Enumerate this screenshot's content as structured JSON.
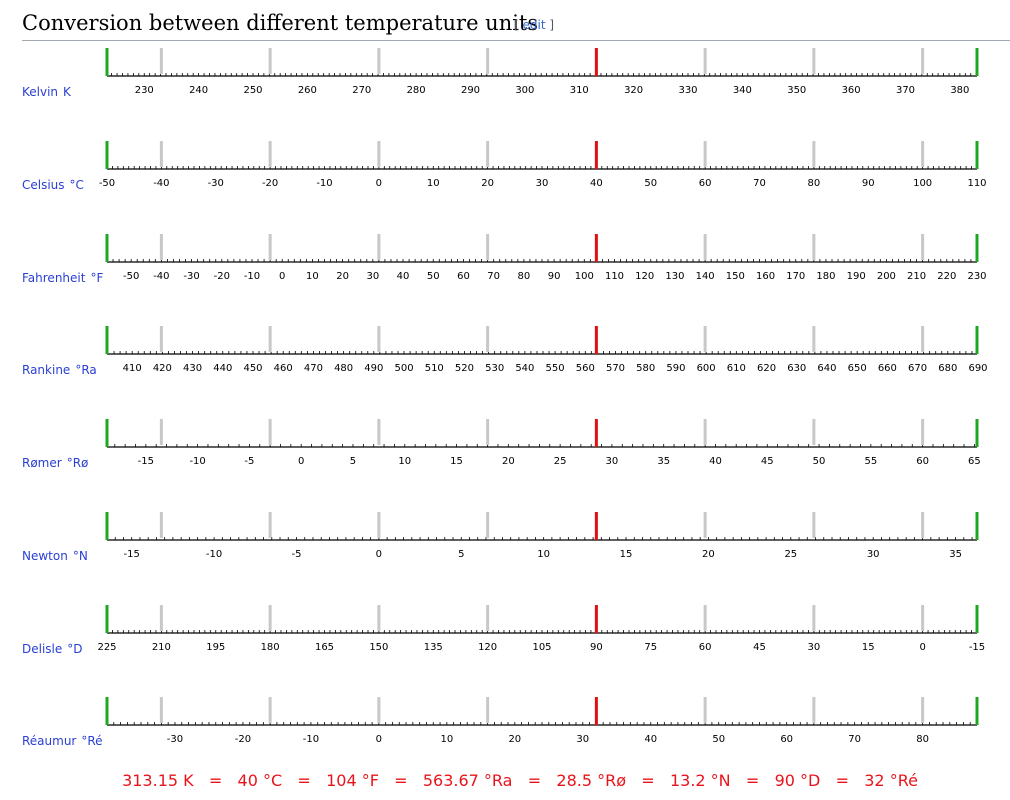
{
  "heading": {
    "title": "Conversion between different temperature units",
    "edit_open": "[",
    "edit_label": "edit",
    "edit_close": "]"
  },
  "colors": {
    "unit_label": "#2a3fd4",
    "endpoint_marker": "#1fa81f",
    "current_marker": "#e01010",
    "reference_marker": "#c8c8c8",
    "axis": "#000000",
    "footer_text": "#e8141b"
  },
  "current_value_kelvin": 313.15,
  "range_kelvin": [
    223.15,
    383.15
  ],
  "reference_points_kelvin": [
    233.15,
    253.15,
    273.15,
    293.15,
    333.15,
    353.15,
    373.15
  ],
  "scales": [
    {
      "name": "Kelvin",
      "symbol": "K",
      "ticks": [
        "230",
        "240",
        "250",
        "260",
        "270",
        "280",
        "290",
        "300",
        "310",
        "320",
        "330",
        "340",
        "350",
        "360",
        "370",
        "380"
      ]
    },
    {
      "name": "Celsius",
      "symbol": "°C",
      "ticks": [
        "-50",
        "-40",
        "-30",
        "-20",
        "-10",
        "0",
        "10",
        "20",
        "30",
        "40",
        "50",
        "60",
        "70",
        "80",
        "90",
        "100",
        "110"
      ]
    },
    {
      "name": "Fahrenheit",
      "symbol": "°F",
      "ticks": [
        "-50",
        "-40",
        "-30",
        "-20",
        "-10",
        "0",
        "10",
        "20",
        "30",
        "40",
        "50",
        "60",
        "70",
        "80",
        "90",
        "100",
        "110",
        "120",
        "130",
        "140",
        "150",
        "160",
        "170",
        "180",
        "190",
        "200",
        "210",
        "220",
        "230"
      ]
    },
    {
      "name": "Rankine",
      "symbol": "°Ra",
      "ticks": [
        "410",
        "420",
        "430",
        "440",
        "450",
        "460",
        "470",
        "480",
        "490",
        "500",
        "510",
        "520",
        "530",
        "540",
        "550",
        "560",
        "570",
        "580",
        "590",
        "600",
        "610",
        "620",
        "630",
        "640",
        "650",
        "660",
        "670",
        "680",
        "690"
      ]
    },
    {
      "name": "Rømer",
      "symbol": "°Rø",
      "ticks": [
        "-15",
        "-10",
        "-5",
        "0",
        "5",
        "10",
        "15",
        "20",
        "25",
        "30",
        "35",
        "40",
        "45",
        "50",
        "55",
        "60",
        "65"
      ]
    },
    {
      "name": "Newton",
      "symbol": "°N",
      "ticks": [
        "-15",
        "-10",
        "-5",
        "0",
        "5",
        "10",
        "15",
        "20",
        "25",
        "30",
        "35"
      ]
    },
    {
      "name": "Delisle",
      "symbol": "°D",
      "ticks": [
        "225",
        "210",
        "195",
        "180",
        "165",
        "150",
        "135",
        "120",
        "105",
        "90",
        "75",
        "60",
        "45",
        "30",
        "15",
        "0",
        "-15"
      ]
    },
    {
      "name": "Réaumur",
      "symbol": "°Ré",
      "ticks": [
        "-30",
        "-20",
        "-10",
        "0",
        "10",
        "20",
        "30",
        "40",
        "50",
        "60",
        "70",
        "80"
      ]
    }
  ],
  "footer": {
    "values": [
      "313.15 K",
      "40 °C",
      "104 °F",
      "563.67 °Ra",
      "28.5 °Rø",
      "13.2 °N",
      "90 °D",
      "32 °Ré"
    ],
    "separator": "="
  }
}
